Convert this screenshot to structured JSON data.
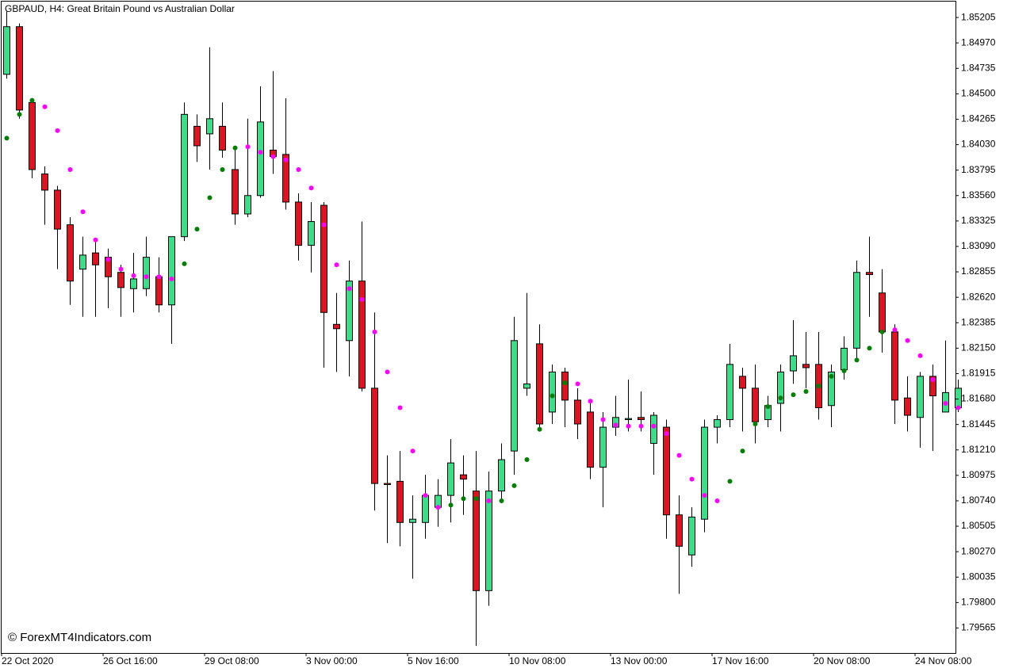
{
  "chart_data": {
    "type": "candlestick",
    "title": "GBPAUD, H4:  Great Britain Pound vs Australian Dollar",
    "annotation": "© ForexMT4Indicators.com",
    "up_color": "#38e08c",
    "down_color": "#e0141e",
    "categories": [
      "22 Oct 2020",
      null,
      null,
      null,
      null,
      null,
      null,
      null,
      "26 Oct 16:00",
      null,
      null,
      null,
      null,
      null,
      null,
      null,
      "29 Oct 08:00",
      null,
      null,
      null,
      null,
      null,
      null,
      null,
      "3 Nov 00:00",
      null,
      null,
      null,
      null,
      null,
      null,
      null,
      "5 Nov 16:00",
      null,
      null,
      null,
      null,
      null,
      null,
      null,
      "10 Nov 08:00",
      null,
      null,
      null,
      null,
      null,
      null,
      null,
      "13 Nov 00:00",
      null,
      null,
      null,
      null,
      null,
      null,
      null,
      "17 Nov 16:00",
      null,
      null,
      null,
      null,
      null,
      null,
      null,
      "20 Nov 08:00",
      null,
      null,
      null,
      null,
      null,
      null,
      null,
      "24 Nov 08:00",
      null,
      null,
      null
    ],
    "open": [
      1.8468,
      1.8512,
      1.8442,
      1.8376,
      1.8361,
      1.8329,
      1.8288,
      1.8303,
      1.8299,
      1.8285,
      1.827,
      1.827,
      1.8281,
      1.8255,
      1.8318,
      1.842,
      1.8413,
      1.842,
      1.838,
      1.8339,
      1.8356,
      1.8398,
      1.8394,
      1.835,
      1.831,
      1.8347,
      1.8237,
      1.8222,
      1.8277,
      1.8178,
      1.809,
      1.8092,
      1.8054,
      1.8054,
      1.8068,
      1.8079,
      1.8098,
      1.8083,
      1.7991,
      1.8083,
      1.812,
      1.8178,
      1.8219,
      1.8156,
      1.8193,
      1.8167,
      1.8156,
      1.8105,
      1.8142,
      1.8149,
      1.8151,
      1.8127,
      1.8142,
      1.8061,
      1.8024,
      1.8057,
      1.8142,
      1.8149,
      1.8189,
      1.8178,
      1.8149,
      1.8164,
      1.8194,
      1.82,
      1.82,
      1.8162,
      1.8195,
      1.8215,
      1.8285,
      1.8266,
      1.823,
      1.8169,
      1.8151,
      1.8189,
      1.8156,
      1.816
    ],
    "high": [
      1.8526,
      1.8515,
      1.8446,
      1.8383,
      1.8365,
      1.8336,
      1.8318,
      1.8314,
      1.8307,
      1.8292,
      1.8303,
      1.8318,
      1.8299,
      1.8318,
      1.8442,
      1.8431,
      1.8493,
      1.8442,
      1.8402,
      1.8427,
      1.8457,
      1.8471,
      1.8446,
      1.8358,
      1.835,
      1.835,
      1.8266,
      1.8296,
      1.8332,
      1.8248,
      1.8116,
      1.812,
      1.8079,
      1.8098,
      1.8094,
      1.8131,
      1.8116,
      1.812,
      1.8101,
      1.8127,
      1.8244,
      1.8266,
      1.8237,
      1.82,
      1.8197,
      1.8178,
      1.8167,
      1.8156,
      1.8171,
      1.8186,
      1.8175,
      1.8156,
      1.8149,
      1.8079,
      1.8068,
      1.8149,
      1.8153,
      1.8219,
      1.8197,
      1.82,
      1.8171,
      1.82,
      1.8241,
      1.823,
      1.823,
      1.82,
      1.8226,
      1.8296,
      1.8318,
      1.8288,
      1.8237,
      1.8189,
      1.8193,
      1.82,
      1.8222,
      1.8186
    ],
    "low": [
      1.8464,
      1.8427,
      1.8372,
      1.8329,
      1.8288,
      1.8255,
      1.8244,
      1.8244,
      1.8252,
      1.8244,
      1.8248,
      1.8263,
      1.8248,
      1.8219,
      1.8314,
      1.8387,
      1.838,
      1.8391,
      1.8329,
      1.8336,
      1.8354,
      1.8376,
      1.8343,
      1.8296,
      1.8285,
      1.8197,
      1.8193,
      1.8189,
      1.8175,
      1.8065,
      1.8035,
      1.8032,
      1.8002,
      1.8039,
      1.805,
      1.8054,
      1.8061,
      1.794,
      1.7977,
      1.8072,
      1.8098,
      1.8171,
      1.8138,
      1.8145,
      1.8142,
      1.8131,
      1.8094,
      1.8068,
      1.8134,
      1.8138,
      1.8138,
      1.8098,
      1.8039,
      1.7988,
      1.8013,
      1.8045,
      1.8127,
      1.8142,
      1.8138,
      1.8127,
      1.8142,
      1.8138,
      1.8182,
      1.8178,
      1.8149,
      1.8142,
      1.8186,
      1.8204,
      1.8244,
      1.8211,
      1.8145,
      1.8138,
      1.8123,
      1.812,
      1.8156,
      1.8156
    ],
    "close": [
      1.8512,
      1.8435,
      1.838,
      1.8361,
      1.8325,
      1.8277,
      1.8301,
      1.8292,
      1.8281,
      1.8271,
      1.8279,
      1.8299,
      1.8255,
      1.8318,
      1.8431,
      1.8402,
      1.8427,
      1.8398,
      1.8339,
      1.8356,
      1.8424,
      1.8392,
      1.835,
      1.831,
      1.8332,
      1.8248,
      1.8233,
      1.8277,
      1.8178,
      1.809,
      1.8089,
      1.8054,
      1.8057,
      1.8079,
      1.8079,
      1.8109,
      1.8094,
      1.7991,
      1.8083,
      1.8112,
      1.8222,
      1.8182,
      1.8145,
      1.8193,
      1.8167,
      1.8145,
      1.8105,
      1.8142,
      1.8151,
      1.815,
      1.8149,
      1.8153,
      1.8061,
      1.8032,
      1.8059,
      1.8142,
      1.8149,
      1.82,
      1.8178,
      1.8147,
      1.8162,
      1.8193,
      1.8208,
      1.8197,
      1.816,
      1.8193,
      1.8215,
      1.8285,
      1.8283,
      1.823,
      1.8167,
      1.8153,
      1.8189,
      1.8171,
      1.8174,
      1.8178
    ],
    "dots": [
      {
        "color": "#008000",
        "values": [
          1.8409,
          1.8431,
          1.8444,
          null,
          null,
          null,
          null,
          null,
          null,
          null,
          null,
          null,
          null,
          null,
          1.8293,
          1.8325,
          1.8354,
          1.838,
          1.84,
          null,
          null,
          null,
          null,
          null,
          null,
          null,
          null,
          null,
          null,
          null,
          null,
          null,
          null,
          null,
          null,
          1.807,
          1.8076,
          1.8076,
          null,
          1.8074,
          1.8088,
          1.8112,
          1.814,
          1.8171,
          1.8183,
          null,
          null,
          null,
          null,
          null,
          null,
          null,
          null,
          null,
          null,
          null,
          null,
          1.8092,
          1.812,
          1.8145,
          1.8161,
          1.8169,
          1.8172,
          1.8175,
          1.818,
          1.8189,
          1.8194,
          1.8204,
          1.8215,
          1.823,
          null,
          null,
          null,
          null,
          null,
          null
        ]
      },
      {
        "color": "#ff00ff",
        "values": [
          null,
          null,
          null,
          1.8438,
          1.8416,
          1.838,
          1.8341,
          1.8315,
          1.8297,
          1.8288,
          1.8282,
          1.8281,
          1.8281,
          1.8279,
          null,
          null,
          null,
          null,
          null,
          1.8401,
          1.8396,
          1.8392,
          1.8389,
          1.838,
          1.8363,
          1.8329,
          1.8292,
          1.827,
          1.826,
          1.823,
          1.8193,
          1.816,
          1.812,
          1.8079,
          1.8068,
          null,
          null,
          null,
          1.8074,
          null,
          null,
          null,
          null,
          null,
          null,
          1.8182,
          1.8166,
          1.8149,
          1.8144,
          1.8143,
          1.8143,
          1.8143,
          1.8136,
          1.8116,
          1.8094,
          1.8079,
          1.8074,
          null,
          null,
          null,
          null,
          null,
          null,
          null,
          null,
          null,
          null,
          null,
          null,
          null,
          1.8232,
          1.8222,
          1.8208,
          1.8186,
          1.8164,
          1.816
        ]
      }
    ],
    "ylim": [
      1.79334,
      1.85352
    ],
    "yticks": [
      1.85205,
      {
        "value": 1.8497,
        "label": "1.84970"
      },
      1.84735,
      {
        "value": 1.845,
        "label": "1.84500"
      },
      1.84265,
      {
        "value": 1.8403,
        "label": "1.84030"
      },
      1.83795,
      {
        "value": 1.8356,
        "label": "1.83560"
      },
      1.83325,
      {
        "value": 1.8309,
        "label": "1.83090"
      },
      1.82855,
      {
        "value": 1.8262,
        "label": "1.82620"
      },
      1.82385,
      {
        "value": 1.8215,
        "label": "1.82150"
      },
      1.81915,
      {
        "value": 1.8168,
        "label": "1.81680"
      },
      1.81445,
      {
        "value": 1.8121,
        "label": "1.81210"
      },
      1.80975,
      {
        "value": 1.8074,
        "label": "1.80740"
      },
      1.80505,
      {
        "value": 1.8027,
        "label": "1.80270"
      },
      1.80035,
      {
        "value": 1.798,
        "label": "1.79800"
      },
      1.79565
    ]
  }
}
